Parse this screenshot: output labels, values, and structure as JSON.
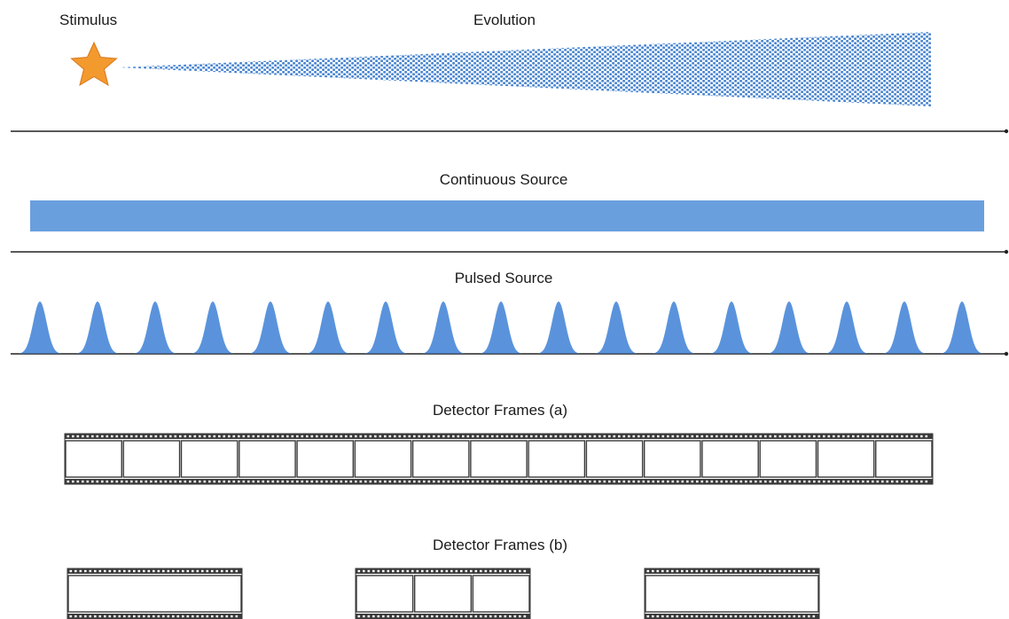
{
  "labels": {
    "stimulus": "Stimulus",
    "evolution": "Evolution",
    "continuous": "Continuous Source",
    "pulsed": "Pulsed Source",
    "frames_a": "Detector Frames (a)",
    "frames_b": "Detector Frames (b)"
  },
  "pulses": {
    "count": 17
  },
  "frames_a": {
    "frames": 15
  },
  "frames_b": {
    "strips": [
      {
        "frames": 1
      },
      {
        "frames": 3
      },
      {
        "frames": 1
      }
    ]
  },
  "colors": {
    "accent": "#6A9FDE",
    "pulse": "#5A93DC",
    "dots": "#4A86D0",
    "star": "#F39A2E",
    "star_edge": "#D9771A",
    "axis": "#222222",
    "film": "#3A3A3A"
  }
}
